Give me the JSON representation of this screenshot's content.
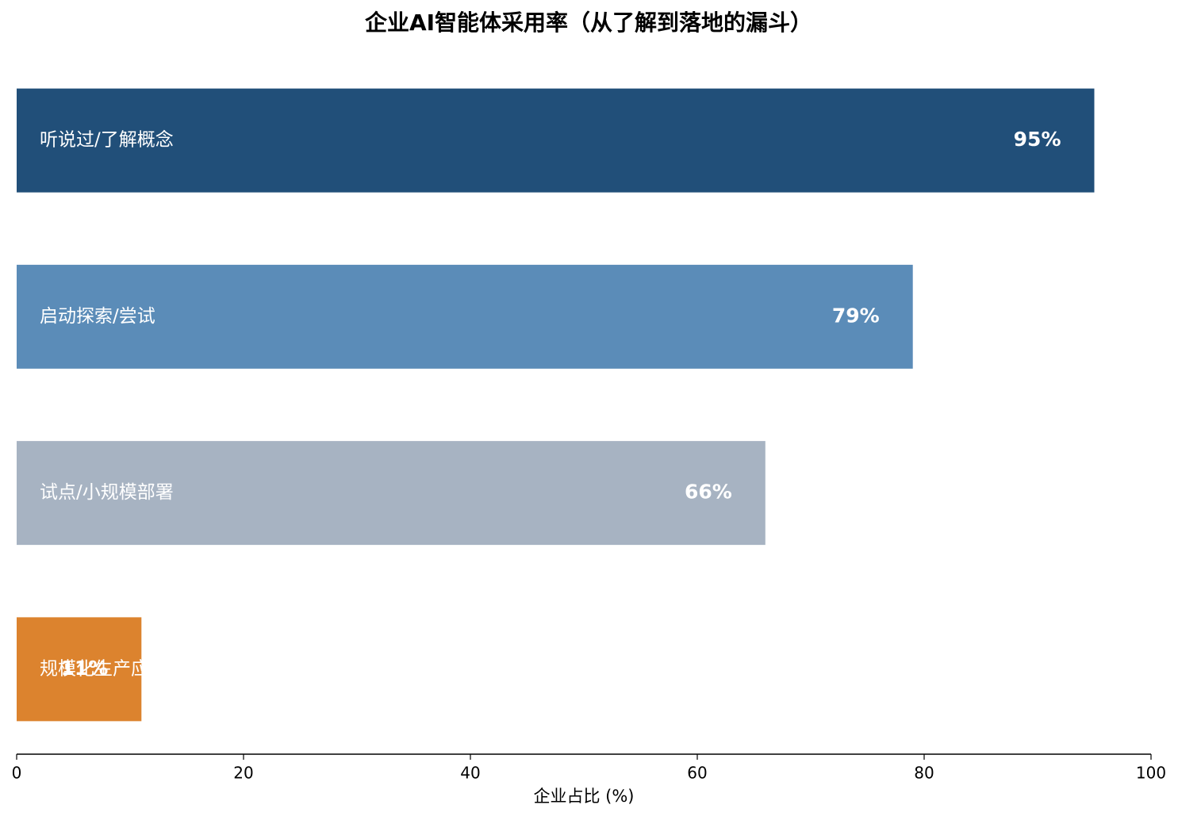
{
  "chart_data": {
    "type": "barh",
    "title": "企业AI智能体采用率（从了解到落地的漏斗）",
    "xlabel": "企业占比 (%)",
    "categories": [
      "听说过/了解概念",
      "启动探索/尝试",
      "试点/小规模部署",
      "规模化生产应用"
    ],
    "values": [
      95,
      79,
      66,
      11
    ],
    "value_labels": [
      "95%",
      "79%",
      "66%",
      "11%"
    ],
    "colors": [
      "#214f79",
      "#5b8cb8",
      "#a7b3c2",
      "#dc832e"
    ],
    "xlim": [
      0,
      100
    ],
    "xticks": [
      0,
      20,
      40,
      60,
      80,
      100
    ],
    "grid": false
  }
}
